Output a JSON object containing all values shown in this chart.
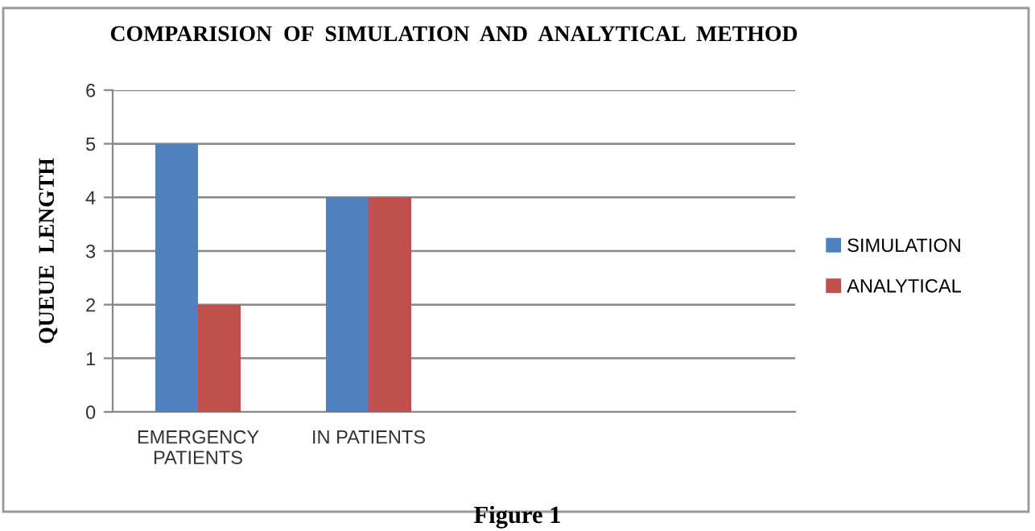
{
  "chart_data": {
    "type": "bar",
    "title": "COMPARISION  OF  SIMULATION  AND  ANALYTICAL  METHOD",
    "ylabel": "QUEUE  LENGTH",
    "categories": [
      "EMERGENCY\nPATIENTS",
      "IN PATIENTS",
      null,
      null
    ],
    "series": [
      {
        "name": "SIMULATION",
        "color": "#4f81bd",
        "values": [
          5,
          4,
          null,
          null
        ]
      },
      {
        "name": "ANALYTICAL",
        "color": "#c0504d",
        "values": [
          2,
          4,
          null,
          null
        ]
      }
    ],
    "ylim": [
      0,
      6
    ],
    "yticks": [
      0,
      1,
      2,
      3,
      4,
      5,
      6
    ],
    "grid": "y",
    "legend": "right",
    "annotations": [
      "Figure 1"
    ]
  }
}
